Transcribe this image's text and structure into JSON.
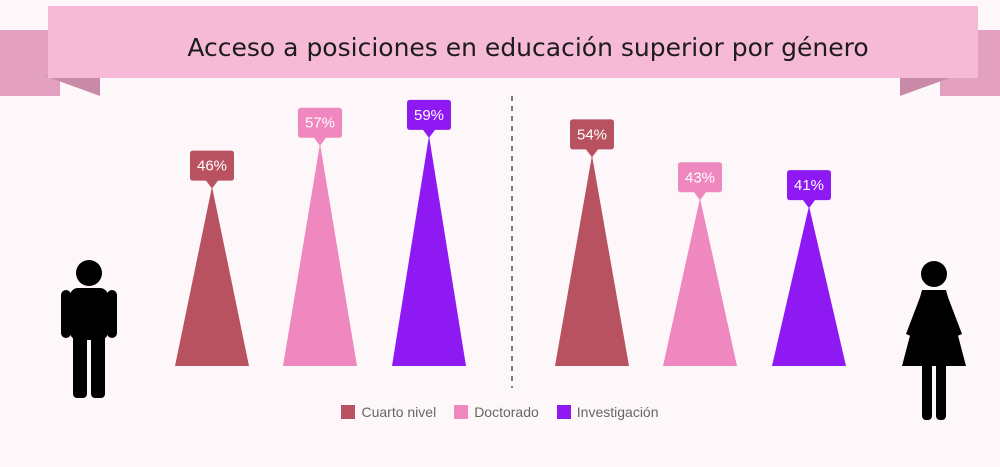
{
  "chart_data": {
    "type": "bar",
    "title": "Acceso a posiciones en educación superior por género",
    "categories": [
      "Cuarto nivel",
      "Doctorado",
      "Investigación"
    ],
    "series": [
      {
        "values": [
          46,
          57,
          59
        ],
        "labels": [
          "46%",
          "57%",
          "59%"
        ],
        "icon": "male-person-icon"
      },
      {
        "values": [
          54,
          43,
          41
        ],
        "labels": [
          "54%",
          "43%",
          "41%"
        ],
        "icon": "female-person-icon"
      }
    ],
    "ylim": [
      0,
      100
    ],
    "legend_position": "bottom-center",
    "colors": [
      "#b85260",
      "#ef88be",
      "#8f19f2"
    ],
    "shape": "triangle"
  },
  "legend": {
    "items": [
      {
        "label": "Cuarto nivel",
        "color": "#b85260"
      },
      {
        "label": "Doctorado",
        "color": "#ef88be"
      },
      {
        "label": "Investigación",
        "color": "#8f19f2"
      }
    ]
  },
  "theme": {
    "banner_color": "#f6bad6",
    "banner_fold_color": "#e3a0bf",
    "background": "#fdf7fa",
    "divider_color": "#555555"
  }
}
